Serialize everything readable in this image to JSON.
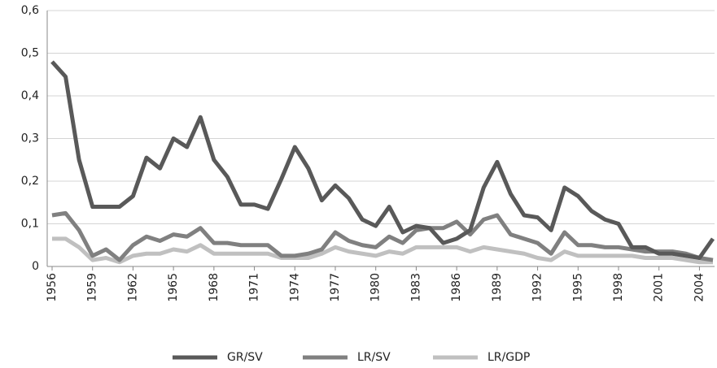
{
  "chart_data": {
    "type": "line",
    "x": [
      1956,
      1957,
      1958,
      1959,
      1960,
      1961,
      1962,
      1963,
      1964,
      1965,
      1966,
      1967,
      1968,
      1969,
      1970,
      1971,
      1972,
      1973,
      1974,
      1975,
      1976,
      1977,
      1978,
      1979,
      1980,
      1981,
      1982,
      1983,
      1984,
      1985,
      1986,
      1987,
      1988,
      1989,
      1990,
      1991,
      1992,
      1993,
      1994,
      1995,
      1996,
      1997,
      1998,
      1999,
      2000,
      2001,
      2002,
      2003,
      2004,
      2005
    ],
    "xlim": [
      1956,
      2005
    ],
    "xticks": [
      1956,
      1959,
      1962,
      1965,
      1968,
      1971,
      1974,
      1977,
      1980,
      1983,
      1986,
      1989,
      1992,
      1995,
      1998,
      2001,
      2004
    ],
    "ylim": [
      0,
      0.6
    ],
    "yticks": [
      0,
      {
        "value": 0.1,
        "label": "0,1"
      },
      {
        "value": 0.2,
        "label": "0,2"
      },
      {
        "value": 0.3,
        "label": "0,3"
      },
      {
        "value": 0.4,
        "label": "0,4"
      },
      {
        "value": 0.5,
        "label": "0,5"
      },
      {
        "value": 0.6,
        "label": "0,6"
      }
    ],
    "grid": true,
    "legend": "bottom",
    "series": [
      {
        "name": "GR/SV",
        "color": "#595959",
        "values": [
          0.48,
          0.445,
          0.25,
          0.14,
          0.14,
          0.14,
          0.165,
          0.255,
          0.23,
          0.3,
          0.28,
          0.35,
          0.25,
          0.21,
          0.145,
          0.145,
          0.135,
          0.205,
          0.28,
          0.23,
          0.155,
          0.19,
          0.16,
          0.11,
          0.095,
          0.14,
          0.08,
          0.095,
          0.09,
          0.055,
          0.065,
          0.085,
          0.185,
          0.245,
          0.17,
          0.12,
          0.115,
          0.085,
          0.185,
          0.165,
          0.13,
          0.11,
          0.1,
          0.045,
          0.045,
          0.03,
          0.03,
          0.025,
          0.02,
          0.065
        ]
      },
      {
        "name": "LR/SV",
        "color": "#808080",
        "values": [
          0.12,
          0.125,
          0.085,
          0.025,
          0.04,
          0.015,
          0.05,
          0.07,
          0.06,
          0.075,
          0.07,
          0.09,
          0.055,
          0.055,
          0.05,
          0.05,
          0.05,
          0.025,
          0.025,
          0.03,
          0.04,
          0.08,
          0.06,
          0.05,
          0.045,
          0.07,
          0.055,
          0.085,
          0.09,
          0.09,
          0.105,
          0.075,
          0.11,
          0.12,
          0.075,
          0.065,
          0.055,
          0.03,
          0.08,
          0.05,
          0.05,
          0.045,
          0.045,
          0.04,
          0.035,
          0.035,
          0.035,
          0.03,
          0.02,
          0.015
        ]
      },
      {
        "name": "LR/GDP",
        "color": "#c0c0c0",
        "values": [
          0.065,
          0.065,
          0.045,
          0.015,
          0.02,
          0.01,
          0.025,
          0.03,
          0.03,
          0.04,
          0.035,
          0.05,
          0.03,
          0.03,
          0.03,
          0.03,
          0.03,
          0.02,
          0.02,
          0.02,
          0.03,
          0.045,
          0.035,
          0.03,
          0.025,
          0.035,
          0.03,
          0.045,
          0.045,
          0.045,
          0.045,
          0.035,
          0.045,
          0.04,
          0.035,
          0.03,
          0.02,
          0.015,
          0.035,
          0.025,
          0.025,
          0.025,
          0.025,
          0.025,
          0.02,
          0.02,
          0.02,
          0.015,
          0.01,
          0.01
        ]
      }
    ]
  }
}
